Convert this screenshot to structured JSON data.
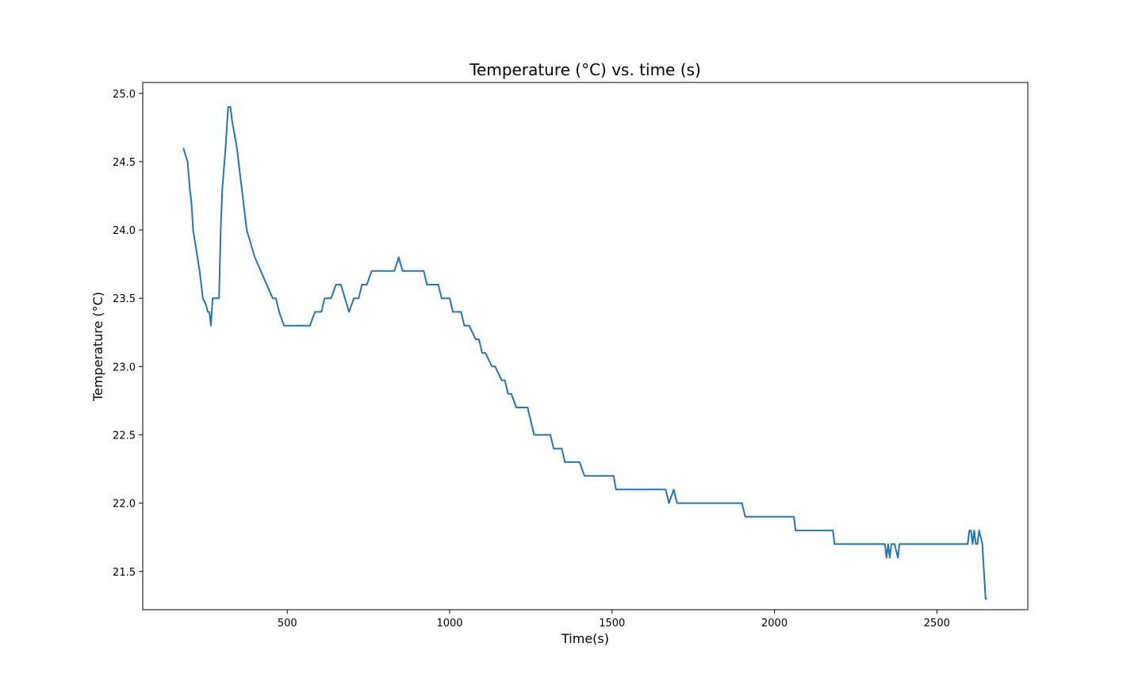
{
  "chart_data": {
    "type": "line",
    "title": "Temperature (°C) vs. time (s)",
    "xlabel": "Time(s)",
    "ylabel": "Temperature (°C)",
    "xlim": [
      55,
      2780
    ],
    "ylim": [
      21.22,
      25.08
    ],
    "xticks": [
      500,
      1000,
      1500,
      2000,
      2500
    ],
    "xtick_labels": [
      "500",
      "1000",
      "1500",
      "2000",
      "2500"
    ],
    "yticks": [
      21.5,
      22.0,
      22.5,
      23.0,
      23.5,
      24.0,
      24.5,
      25.0
    ],
    "ytick_labels": [
      "21.5",
      "22.0",
      "22.5",
      "23.0",
      "23.5",
      "24.0",
      "24.5",
      "25.0"
    ],
    "grid": false,
    "series": [
      {
        "color": "#1f77b4",
        "x": [
          180,
          193,
          200,
          205,
          210,
          230,
          240,
          250,
          255,
          260,
          265,
          270,
          290,
          295,
          300,
          310,
          318,
          325,
          330,
          345,
          360,
          375,
          400,
          455,
          465,
          475,
          490,
          500,
          570,
          585,
          605,
          615,
          635,
          650,
          665,
          690,
          705,
          720,
          730,
          745,
          760,
          770,
          830,
          843,
          855,
          875,
          900,
          920,
          930,
          965,
          975,
          1000,
          1010,
          1035,
          1045,
          1060,
          1080,
          1090,
          1100,
          1110,
          1130,
          1140,
          1160,
          1170,
          1180,
          1190,
          1205,
          1215,
          1225,
          1240,
          1250,
          1260,
          1275,
          1310,
          1320,
          1345,
          1355,
          1385,
          1400,
          1415,
          1425,
          1505,
          1512,
          1535,
          1665,
          1675,
          1690,
          1700,
          1730,
          1780,
          1830,
          1900,
          1910,
          2060,
          2065,
          2180,
          2185,
          2340,
          2345,
          2350,
          2355,
          2360,
          2370,
          2380,
          2385,
          2390,
          2400,
          2450,
          2500,
          2550,
          2595,
          2600,
          2605,
          2610,
          2615,
          2620,
          2625,
          2630,
          2640,
          2645,
          2650,
          2655
        ],
        "y": [
          24.6,
          24.5,
          24.3,
          24.2,
          24.0,
          23.7,
          23.5,
          23.45,
          23.4,
          23.4,
          23.3,
          23.5,
          23.5,
          24.0,
          24.3,
          24.6,
          24.9,
          24.9,
          24.8,
          24.6,
          24.3,
          24.0,
          23.8,
          23.5,
          23.5,
          23.4,
          23.3,
          23.3,
          23.3,
          23.4,
          23.4,
          23.5,
          23.5,
          23.6,
          23.6,
          23.4,
          23.5,
          23.5,
          23.6,
          23.6,
          23.7,
          23.7,
          23.7,
          23.8,
          23.7,
          23.7,
          23.7,
          23.7,
          23.6,
          23.6,
          23.5,
          23.5,
          23.4,
          23.4,
          23.3,
          23.3,
          23.2,
          23.2,
          23.1,
          23.1,
          23.0,
          23.0,
          22.9,
          22.9,
          22.8,
          22.8,
          22.7,
          22.7,
          22.7,
          22.7,
          22.6,
          22.5,
          22.5,
          22.5,
          22.4,
          22.4,
          22.3,
          22.3,
          22.3,
          22.2,
          22.2,
          22.2,
          22.1,
          22.1,
          22.1,
          22.0,
          22.1,
          22.0,
          22.0,
          22.0,
          22.0,
          22.0,
          21.9,
          21.9,
          21.8,
          21.8,
          21.7,
          21.7,
          21.6,
          21.7,
          21.6,
          21.7,
          21.7,
          21.6,
          21.7,
          21.7,
          21.7,
          21.7,
          21.7,
          21.7,
          21.7,
          21.8,
          21.8,
          21.7,
          21.8,
          21.7,
          21.7,
          21.8,
          21.7,
          21.5,
          21.3,
          21.3
        ]
      }
    ]
  }
}
